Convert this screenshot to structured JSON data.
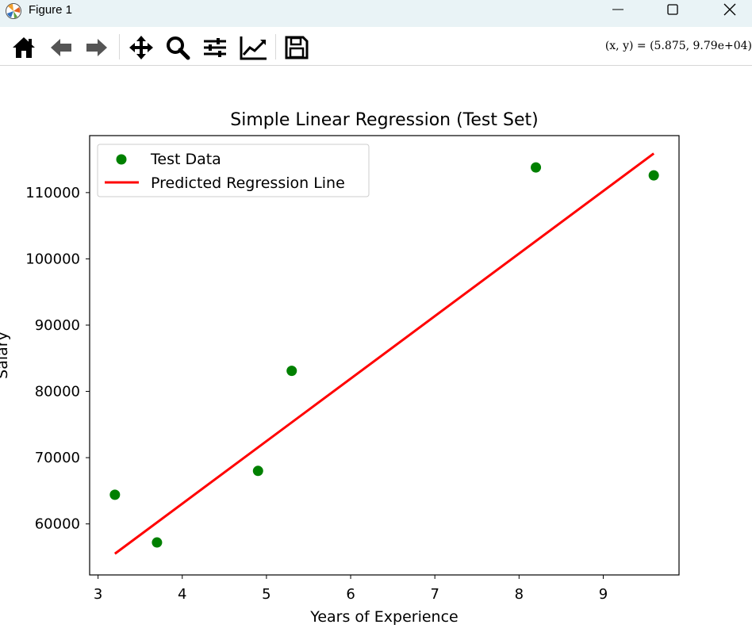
{
  "window": {
    "title": "Figure 1",
    "icon": "matplotlib-icon",
    "controls": [
      "minimize-icon",
      "maximize-icon",
      "close-icon"
    ]
  },
  "toolbar": {
    "tools": [
      "home-icon",
      "back-arrow-icon",
      "forward-arrow-icon",
      "pan-icon",
      "zoom-icon",
      "configure-subplots-icon",
      "edit-axis-icon",
      "save-icon"
    ],
    "coords": "(x, y) = (5.875, 9.79e+04)"
  },
  "chart_data": {
    "type": "scatter",
    "title": "Simple Linear Regression (Test Set)",
    "xlabel": "Years of Experience",
    "ylabel": "Salary",
    "xlim": [
      2.9,
      9.9
    ],
    "ylim": [
      52300,
      118600
    ],
    "xticks": [
      3,
      4,
      5,
      6,
      7,
      8,
      9
    ],
    "yticks": [
      60000,
      70000,
      80000,
      90000,
      100000,
      110000
    ],
    "grid": false,
    "legend_position": "upper-left",
    "series": [
      {
        "name": "Test Data",
        "kind": "scatter",
        "color": "#008000",
        "x": [
          3.2,
          3.7,
          4.9,
          5.3,
          8.2,
          9.6
        ],
        "y": [
          64400,
          57200,
          68000,
          83100,
          113800,
          112600
        ]
      },
      {
        "name": "Predicted Regression Line",
        "kind": "line",
        "color": "#ff0000",
        "x": [
          3.2,
          9.6
        ],
        "y": [
          55500,
          115900
        ]
      }
    ]
  }
}
